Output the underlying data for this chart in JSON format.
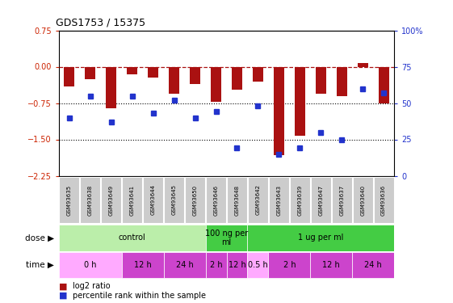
{
  "title": "GDS1753 / 15375",
  "samples": [
    "GSM93635",
    "GSM93638",
    "GSM93649",
    "GSM93641",
    "GSM93644",
    "GSM93645",
    "GSM93650",
    "GSM93646",
    "GSM93648",
    "GSM93642",
    "GSM93643",
    "GSM93639",
    "GSM93647",
    "GSM93637",
    "GSM93640",
    "GSM93636"
  ],
  "log2_ratio": [
    -0.4,
    -0.25,
    -0.85,
    -0.15,
    -0.22,
    -0.55,
    -0.35,
    -0.72,
    -0.47,
    -0.3,
    -1.82,
    -1.42,
    -0.55,
    -0.6,
    0.08,
    -0.75
  ],
  "percentile_rank": [
    40,
    55,
    37,
    55,
    43,
    52,
    40,
    44,
    19,
    48,
    15,
    19,
    30,
    25,
    60,
    57
  ],
  "ylim_left": [
    -2.25,
    0.75
  ],
  "ylim_right": [
    0,
    100
  ],
  "yticks_left": [
    0.75,
    0,
    -0.75,
    -1.5,
    -2.25
  ],
  "yticks_right": [
    100,
    75,
    50,
    25,
    0
  ],
  "bar_color": "#aa1111",
  "dot_color": "#2233cc",
  "dotted_lines": [
    -0.75,
    -1.5
  ],
  "dose_groups": [
    {
      "label": "control",
      "start": 0,
      "end": 7,
      "color": "#bbeeaa"
    },
    {
      "label": "100 ng per\nml",
      "start": 7,
      "end": 9,
      "color": "#44cc44"
    },
    {
      "label": "1 ug per ml",
      "start": 9,
      "end": 16,
      "color": "#44cc44"
    }
  ],
  "time_groups": [
    {
      "label": "0 h",
      "start": 0,
      "end": 3,
      "color": "#ffaaff"
    },
    {
      "label": "12 h",
      "start": 3,
      "end": 5,
      "color": "#cc44cc"
    },
    {
      "label": "24 h",
      "start": 5,
      "end": 7,
      "color": "#cc44cc"
    },
    {
      "label": "2 h",
      "start": 7,
      "end": 8,
      "color": "#cc44cc"
    },
    {
      "label": "12 h",
      "start": 8,
      "end": 9,
      "color": "#cc44cc"
    },
    {
      "label": "0.5 h",
      "start": 9,
      "end": 10,
      "color": "#ffaaff"
    },
    {
      "label": "2 h",
      "start": 10,
      "end": 12,
      "color": "#cc44cc"
    },
    {
      "label": "12 h",
      "start": 12,
      "end": 14,
      "color": "#cc44cc"
    },
    {
      "label": "24 h",
      "start": 14,
      "end": 16,
      "color": "#cc44cc"
    }
  ],
  "dose_label": "dose",
  "time_label": "time",
  "legend_bar_label": "log2 ratio",
  "legend_dot_label": "percentile rank within the sample",
  "n_samples": 16
}
